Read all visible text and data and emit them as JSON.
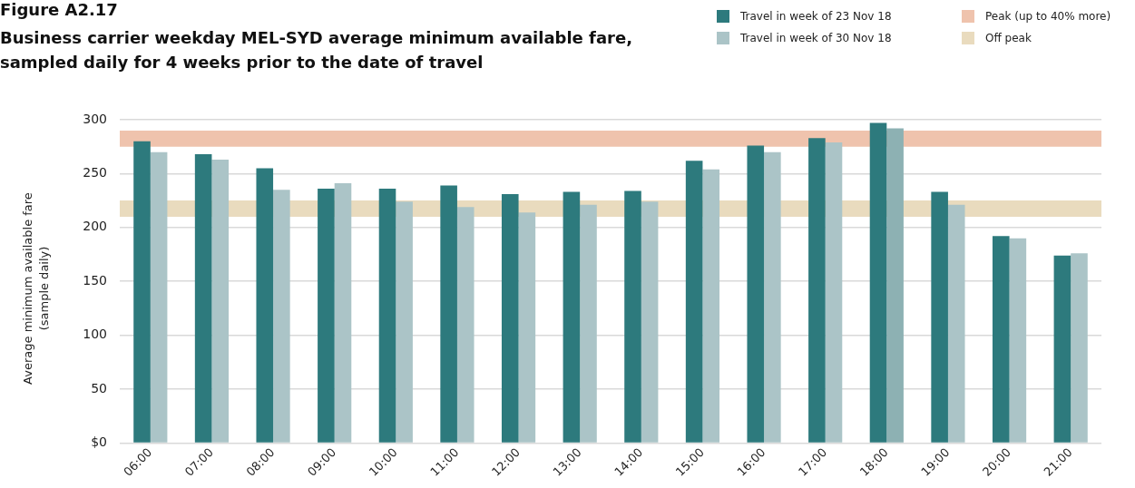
{
  "chart_data": {
    "type": "bar",
    "title": "Figure A2.17",
    "subtitle": "Business carrier weekday MEL-SYD average minimum available fare, sampled daily for 4 weeks prior to the date of travel",
    "ylabel": "Average minimum available fare (sample daily)",
    "categories": [
      "06:00",
      "07:00",
      "08:00",
      "09:00",
      "10:00",
      "11:00",
      "12:00",
      "13:00",
      "14:00",
      "15:00",
      "16:00",
      "17:00",
      "18:00",
      "19:00",
      "20:00",
      "21:00"
    ],
    "series": [
      {
        "name": "Travel in week of 23 Nov 18",
        "color": "#2d7a7d",
        "values": [
          280,
          268,
          255,
          236,
          236,
          239,
          231,
          233,
          234,
          262,
          276,
          283,
          297,
          233,
          192,
          174
        ]
      },
      {
        "name": "Travel in week of 30 Nov 18",
        "color": "#abc4c7",
        "colors": [
          "#abc4c7",
          "#abc4c7",
          "#abc4c7",
          "#abc4c7",
          "#abc4c7",
          "#abc4c7",
          "#abc4c7",
          "#abc4c7",
          "#abc4c7",
          "#abc4c7",
          "#abc4c7",
          "#abc4c7",
          "#8db1b3",
          "#abc4c7",
          "#abc4c7",
          "#abc4c7"
        ],
        "values": [
          270,
          263,
          235,
          241,
          224,
          219,
          214,
          221,
          224,
          254,
          270,
          279,
          292,
          221,
          190,
          176
        ]
      }
    ],
    "bands": [
      {
        "axis": "y",
        "from": 275,
        "to": 290,
        "label": "Peak (up to 40% more)",
        "color": "#efc3ad"
      },
      {
        "axis": "y",
        "from": 210,
        "to": 225,
        "label": "Off peak",
        "color": "#e9dbbe"
      }
    ],
    "ylim": [
      0,
      300
    ],
    "yticks": [
      {
        "value": 0,
        "label": "$0"
      },
      50,
      100,
      150,
      200,
      250,
      300
    ],
    "grid": "y",
    "legend": "top right"
  }
}
